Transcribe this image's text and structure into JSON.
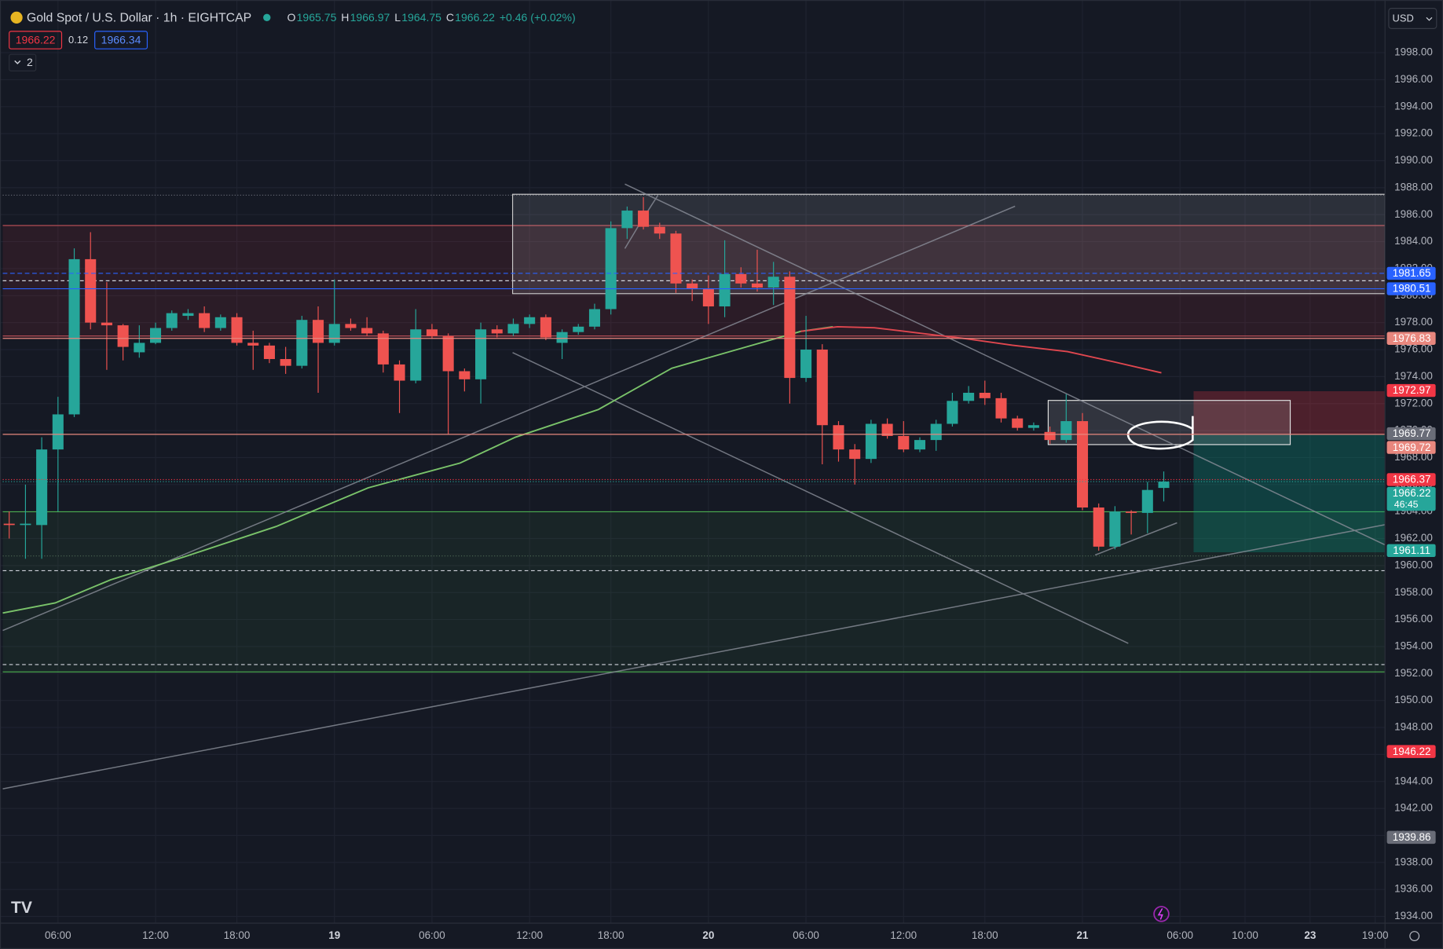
{
  "header": {
    "symbol": "Gold Spot / U.S. Dollar · 1h · EIGHTCAP",
    "ohlc": [
      {
        "key": "O",
        "value": "1965.75"
      },
      {
        "key": "H",
        "value": "1966.97"
      },
      {
        "key": "L",
        "value": "1964.75"
      },
      {
        "key": "C",
        "value": "1966.22"
      }
    ],
    "change": "+0.46 (+0.02%)",
    "bid": "1966.22",
    "spread": "0.12",
    "ask": "1966.34",
    "indicators": "2",
    "currency": "USD"
  },
  "chart_data": {
    "type": "candlestick",
    "categories": [
      null,
      null,
      null,
      "06:00",
      null,
      null,
      null,
      null,
      null,
      "12:00",
      null,
      null,
      null,
      null,
      "18:00",
      null,
      null,
      null,
      null,
      null,
      "19",
      null,
      null,
      null,
      null,
      null,
      "06:00",
      null,
      null,
      null,
      null,
      null,
      "12:00",
      null,
      null,
      null,
      null,
      "18:00",
      null,
      null,
      null,
      null,
      null,
      "20",
      null,
      null,
      null,
      null,
      null,
      "06:00",
      null,
      null,
      null,
      null,
      null,
      "12:00",
      null,
      null,
      null,
      null,
      "18:00",
      null,
      null,
      null,
      null,
      null,
      "21",
      null,
      null,
      null,
      null,
      null,
      "06:00",
      null,
      null,
      null,
      "10:00",
      null,
      null,
      null,
      "23",
      null,
      null,
      null,
      "19:00"
    ],
    "open": [
      1963.1,
      1963,
      1963,
      1968.6,
      1971.2,
      1982.7,
      1978,
      1977.8,
      1975.8,
      1976.5,
      1977.6,
      1978.5,
      1978.7,
      1977.6,
      1978.4,
      1976.5,
      1976.3,
      1975.3,
      1974.8,
      1978.2,
      1976.5,
      1977.9,
      1977.6,
      1977.2,
      1974.9,
      1973.7,
      1977.5,
      1977,
      1974.4,
      1973.8,
      1977.5,
      1977.2,
      1977.9,
      1978.4,
      1976.5,
      1977.3,
      1977.7,
      1979,
      1985,
      1986.3,
      1985.1,
      1984.6,
      1980.9,
      1980.5,
      1979.2,
      1981.6,
      1980.9,
      1980.6,
      1981.4,
      1973.9,
      1976,
      1970.4,
      1968.6,
      1967.9,
      1970.5,
      1969.6,
      1968.6,
      1969.3,
      1970.5,
      1972.2,
      1972.8,
      1972.4,
      1970.9,
      1970.2,
      1969.9,
      1969.3,
      1970.7,
      1964.3,
      1961.4,
      1964,
      1963.9,
      1965.75,
      null,
      null,
      null,
      null,
      null,
      null,
      null,
      null,
      null,
      null,
      null,
      null,
      null
    ],
    "high": [
      1964,
      1966,
      1969.5,
      1972.5,
      1983.5,
      1984.7,
      1981,
      1977.9,
      1977.8,
      1978,
      1978.9,
      1979,
      1979.2,
      1978.6,
      1978.7,
      1977.4,
      1976.5,
      1976.2,
      1978.5,
      1979.2,
      1981.2,
      1978.3,
      1978.4,
      1977.4,
      1975.2,
      1979,
      1977.9,
      1977.2,
      1974.6,
      1978,
      1977.8,
      1978.3,
      1978.6,
      1978.6,
      1977.5,
      1977.9,
      1979.4,
      1985.5,
      1986.6,
      1987.3,
      1985.4,
      1984.8,
      1981.2,
      1981.5,
      1984.1,
      1982.1,
      1983.4,
      1982.5,
      1981.8,
      1978.5,
      1976.4,
      1970.7,
      1969,
      1970.8,
      1970.9,
      1970.7,
      1969.5,
      1970.8,
      1972.8,
      1973.3,
      1973.7,
      1972.8,
      1971.1,
      1970.6,
      1970.3,
      1972.7,
      1971.3,
      1964.6,
      1964.4,
      1964.1,
      1966.2,
      1966.97,
      null,
      null,
      null,
      null,
      null,
      null,
      null,
      null,
      null,
      null,
      null,
      null,
      null
    ],
    "low": [
      1962,
      1960.5,
      1960.5,
      1964,
      1971,
      1977.5,
      1974.5,
      1975.2,
      1975.4,
      1976.4,
      1977.4,
      1978.2,
      1977.3,
      1977.4,
      1976.3,
      1974.5,
      1975,
      1974.2,
      1974.6,
      1972.8,
      1976.3,
      1977.4,
      1977,
      1974.3,
      1971.3,
      1973.5,
      1976.8,
      1969.7,
      1972.9,
      1972,
      1976.9,
      1977,
      1977.6,
      1976.7,
      1975.3,
      1977.1,
      1977.5,
      1978.6,
      1984.2,
      1984.9,
      1984.2,
      1980.2,
      1979.6,
      1977.9,
      1978.4,
      1980.6,
      1980.3,
      1979.3,
      1972,
      1973.6,
      1967.5,
      1967.7,
      1966,
      1967.6,
      1969.4,
      1968.4,
      1968.4,
      1968.5,
      1970.3,
      1972,
      1971.9,
      1970.6,
      1970,
      1970,
      1969,
      1969.1,
      1964.1,
      1961.1,
      1961.2,
      1962.3,
      1962.4,
      1964.75,
      null,
      null,
      null,
      null,
      null,
      null,
      null,
      null,
      null,
      null,
      null,
      null,
      null
    ],
    "close": [
      1963,
      1963.1,
      1968.6,
      1971.2,
      1982.7,
      1978,
      1977.8,
      1976.2,
      1976.5,
      1977.6,
      1978.7,
      1978.7,
      1977.6,
      1978.4,
      1976.5,
      1976.3,
      1975.3,
      1974.8,
      1978.2,
      1976.5,
      1977.9,
      1977.6,
      1977.2,
      1974.9,
      1973.7,
      1977.5,
      1977,
      1974.4,
      1973.8,
      1977.5,
      1977.2,
      1977.9,
      1978.4,
      1976.9,
      1977.3,
      1977.7,
      1979,
      1985,
      1986.3,
      1985.1,
      1984.6,
      1980.9,
      1980.5,
      1979.2,
      1981.6,
      1980.9,
      1980.6,
      1981.4,
      1973.9,
      1976,
      1970.4,
      1968.6,
      1967.9,
      1970.5,
      1969.6,
      1968.6,
      1969.3,
      1970.5,
      1972.2,
      1972.8,
      1972.4,
      1970.9,
      1970.2,
      1970.4,
      1969.3,
      1970.7,
      1964.3,
      1961.4,
      1964,
      1963.9,
      1965.6,
      1966.22,
      null,
      null,
      null,
      null,
      null,
      null,
      null,
      null,
      null,
      null,
      null,
      null,
      null
    ],
    "up_color": "#26a69a",
    "down_color": "#ef5350",
    "ylim": [
      1933.5,
      2001.9
    ],
    "yticks": [
      {
        "value": 1934,
        "label": "1934.00"
      },
      {
        "value": 1936,
        "label": "1936.00"
      },
      {
        "value": 1938,
        "label": "1938.00"
      },
      {
        "value": 1940,
        "label": "1940.00"
      },
      {
        "value": 1942,
        "label": "1942.00"
      },
      {
        "value": 1944,
        "label": "1944.00"
      },
      {
        "value": 1946,
        "label": "1946.00"
      },
      {
        "value": 1948,
        "label": "1948.00"
      },
      {
        "value": 1950,
        "label": "1950.00"
      },
      {
        "value": 1952,
        "label": "1952.00"
      },
      {
        "value": 1954,
        "label": "1954.00"
      },
      {
        "value": 1956,
        "label": "1956.00"
      },
      {
        "value": 1958,
        "label": "1958.00"
      },
      {
        "value": 1960,
        "label": "1960.00"
      },
      {
        "value": 1962,
        "label": "1962.00"
      },
      {
        "value": 1964,
        "label": "1964.00"
      },
      {
        "value": 1966,
        "label": "1966.00"
      },
      {
        "value": 1968,
        "label": "1968.00"
      },
      {
        "value": 1970,
        "label": "1970.00"
      },
      {
        "value": 1972,
        "label": "1972.00"
      },
      {
        "value": 1974,
        "label": "1974.00"
      },
      {
        "value": 1976,
        "label": "1976.00"
      },
      {
        "value": 1978,
        "label": "1978.00"
      },
      {
        "value": 1980,
        "label": "1980.00"
      },
      {
        "value": 1982,
        "label": "1982.00"
      },
      {
        "value": 1984,
        "label": "1984.00"
      },
      {
        "value": 1986,
        "label": "1986.00"
      },
      {
        "value": 1988,
        "label": "1988.00"
      },
      {
        "value": 1990,
        "label": "1990.00"
      },
      {
        "value": 1992,
        "label": "1992.00"
      },
      {
        "value": 1994,
        "label": "1994.00"
      },
      {
        "value": 1996,
        "label": "1996.00"
      },
      {
        "value": 1998,
        "label": "1998.00"
      }
    ],
    "grid": true,
    "price_levels": [
      {
        "value": 1981.65,
        "color": "#2962ff",
        "style": "dashed"
      },
      {
        "value": 1980.51,
        "color": "#2962ff",
        "style": "solid"
      },
      {
        "value": 1976.83,
        "color": "#e8877e",
        "style": "solid"
      },
      {
        "value": 1972.97,
        "color": "#f23645",
        "style": "none"
      },
      {
        "value": 1969.77,
        "color": "#6a6d78",
        "style": "none"
      },
      {
        "value": 1969.72,
        "color": "#e8877e",
        "style": "solid"
      },
      {
        "value": 1966.37,
        "color": "#f23645",
        "style": "dotted"
      },
      {
        "value": 1966.22,
        "color": "#26a69a",
        "style": "dotted",
        "countdown": "46:45"
      },
      {
        "value": 1961.11,
        "color": "#26a69a",
        "style": "none"
      },
      {
        "value": 1946.22,
        "color": "#f23645",
        "style": "none"
      },
      {
        "value": 1939.86,
        "color": "#6a6d78",
        "style": "none"
      }
    ]
  }
}
